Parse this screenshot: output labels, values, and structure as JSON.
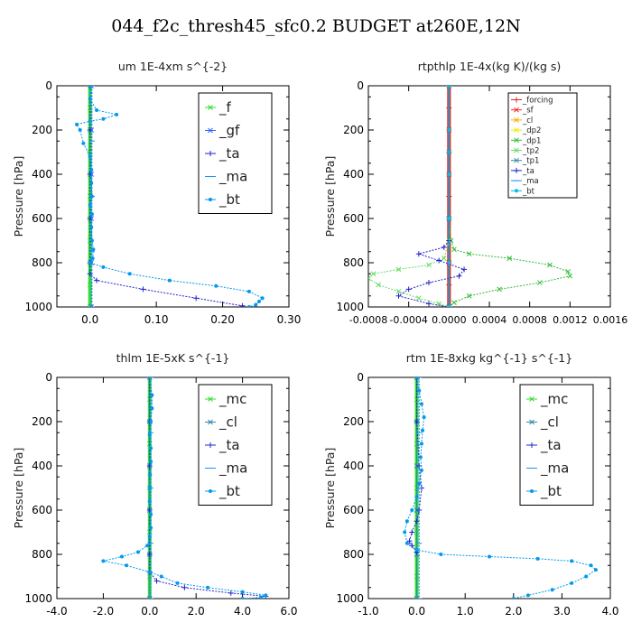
{
  "page": {
    "title": "044_f2c_thresh45_sfc0.2  BUDGET at260E,12N"
  },
  "chart_data": [
    {
      "type": "line",
      "title": "um   1E-4xm s^{-2}",
      "ylabel": "Pressure [hPa]",
      "ylim": [
        1000,
        0
      ],
      "xlim": [
        -0.05,
        0.3
      ],
      "xticks": [
        0.0,
        0.1,
        0.2,
        0.3
      ],
      "xtick_labels": [
        "0.0",
        "0.10",
        "0.20",
        "0.30"
      ],
      "yticks": [
        0,
        200,
        400,
        600,
        800,
        1000
      ],
      "ytick_labels": [
        "0",
        "200",
        "400",
        "600",
        "800",
        "1000"
      ],
      "legend": {
        "position": "top-right",
        "size": "large"
      },
      "series": [
        {
          "name": "_f",
          "color": "#33dd33",
          "marker": "x",
          "x": [
            0,
            0,
            0,
            0,
            0,
            0,
            0,
            0,
            0,
            0,
            0
          ],
          "y": [
            0,
            100,
            200,
            300,
            400,
            500,
            600,
            700,
            800,
            900,
            1000
          ]
        },
        {
          "name": "_gf",
          "color": "#3366ff",
          "marker": "x",
          "x": [
            0.002,
            0.002,
            0.002,
            0.002,
            0.002,
            0.002
          ],
          "y": [
            0,
            200,
            400,
            600,
            800,
            1000
          ]
        },
        {
          "name": "_ta",
          "color": "#2222cc",
          "marker": "+",
          "x": [
            0.0,
            0.0,
            0.0,
            0.0,
            0.0,
            0.0,
            0.01,
            0.08,
            0.16,
            0.23
          ],
          "y": [
            0,
            200,
            400,
            600,
            800,
            850,
            880,
            920,
            960,
            995
          ]
        },
        {
          "name": "_ma",
          "color": "#1e90ff",
          "marker": "-",
          "x": [
            0.003,
            0.003,
            0.003,
            0.003,
            0.003
          ],
          "y": [
            0,
            250,
            500,
            750,
            1000
          ]
        },
        {
          "name": "_bt",
          "color": "#0099ee",
          "marker": "o",
          "x": [
            0.0,
            0.0,
            0.01,
            0.04,
            0.02,
            0.0,
            -0.02,
            -0.015,
            -0.01,
            0.0,
            0.002,
            0.002,
            0.003,
            0.0,
            0.003,
            0.002,
            0.003,
            0.005,
            0.004,
            0.0,
            0.02,
            0.06,
            0.12,
            0.19,
            0.24,
            0.26,
            0.255,
            0.25,
            0.24
          ],
          "y": [
            0,
            60,
            110,
            130,
            150,
            160,
            175,
            200,
            260,
            320,
            380,
            440,
            500,
            540,
            580,
            640,
            700,
            740,
            780,
            800,
            820,
            850,
            880,
            905,
            930,
            960,
            975,
            990,
            1000
          ]
        }
      ]
    },
    {
      "type": "line",
      "title": "rtpthlp   1E-4x(kg K)/(kg s)",
      "ylabel": "Pressure [hPa]",
      "ylim": [
        1000,
        0
      ],
      "xlim": [
        -0.0008,
        0.0016
      ],
      "xticks": [
        -0.0008,
        -0.0004,
        0.0,
        0.0004,
        0.0008,
        0.0012,
        0.0016
      ],
      "xtick_labels": [
        "-0.0008",
        "-0.0004",
        "0.0000",
        "0.0004",
        "0.0008",
        "0.0012",
        "0.0016"
      ],
      "yticks": [
        0,
        200,
        400,
        600,
        800,
        1000
      ],
      "ytick_labels": [
        "0",
        "200",
        "400",
        "600",
        "800",
        "1000"
      ],
      "legend": {
        "position": "top-right",
        "size": "small"
      },
      "series": [
        {
          "name": "_forcing",
          "color": "#dd2222",
          "marker": "+",
          "x": [
            0,
            0,
            0,
            0,
            0,
            0,
            0,
            0,
            0,
            0,
            0
          ],
          "y": [
            0,
            100,
            200,
            300,
            400,
            500,
            600,
            700,
            800,
            900,
            1000
          ]
        },
        {
          "name": "_sf",
          "color": "#ff2222",
          "marker": "x",
          "x": [
            0,
            0,
            0,
            0,
            0,
            0
          ],
          "y": [
            0,
            200,
            400,
            600,
            800,
            1000
          ]
        },
        {
          "name": "_cl",
          "color": "#ffaa00",
          "marker": "x",
          "x": [
            0,
            0,
            0,
            0
          ],
          "y": [
            0,
            300,
            600,
            1000
          ]
        },
        {
          "name": "_dp2",
          "color": "#eeee00",
          "marker": "x",
          "x": [
            0,
            0,
            0,
            0
          ],
          "y": [
            0,
            300,
            600,
            1000
          ]
        },
        {
          "name": "_dp1",
          "color": "#33bb33",
          "marker": "x",
          "x": [
            0.0,
            0.0,
            2e-05,
            5e-05,
            0.0002,
            0.0006,
            0.001,
            0.00118,
            0.0012,
            0.0009,
            0.0005,
            0.0002,
            5e-05,
            0.0
          ],
          "y": [
            0,
            600,
            700,
            740,
            760,
            780,
            810,
            840,
            860,
            890,
            920,
            950,
            980,
            1000
          ]
        },
        {
          "name": "_tp2",
          "color": "#66dd66",
          "marker": "x",
          "x": [
            0.0,
            0.0,
            -5e-05,
            -0.0002,
            -0.0005,
            -0.00075,
            -0.0008,
            -0.0007,
            -0.0005,
            -0.0003,
            -0.0001,
            0.0
          ],
          "y": [
            0,
            700,
            780,
            810,
            830,
            850,
            870,
            900,
            930,
            960,
            985,
            1000
          ]
        },
        {
          "name": "_tp1",
          "color": "#3388aa",
          "marker": "x",
          "x": [
            0,
            0,
            0,
            0
          ],
          "y": [
            0,
            300,
            600,
            1000
          ]
        },
        {
          "name": "_ta",
          "color": "#2222cc",
          "marker": "+",
          "x": [
            0.0,
            -5e-05,
            -0.0003,
            -0.0001,
            0.00015,
            0.0001,
            -0.0002,
            -0.0004,
            -0.0005,
            -0.0002,
            0.0
          ],
          "y": [
            700,
            730,
            760,
            790,
            830,
            860,
            890,
            920,
            950,
            985,
            1000
          ]
        },
        {
          "name": "_ma",
          "color": "#1e90ff",
          "marker": "-",
          "x": [
            0,
            0,
            0,
            0
          ],
          "y": [
            0,
            300,
            600,
            1000
          ]
        },
        {
          "name": "_bt",
          "color": "#00bbee",
          "marker": "o",
          "x": [
            0,
            0,
            0,
            0,
            0,
            0
          ],
          "y": [
            0,
            200,
            400,
            600,
            800,
            1000
          ]
        }
      ]
    },
    {
      "type": "line",
      "title": "thlm   1E-5xK s^{-1}",
      "ylabel": "Pressure [hPa]",
      "ylim": [
        1000,
        0
      ],
      "xlim": [
        -4.0,
        6.0
      ],
      "xticks": [
        -4.0,
        -2.0,
        0.0,
        2.0,
        4.0,
        6.0
      ],
      "xtick_labels": [
        "-4.0",
        "-2.0",
        "0.0",
        "2.0",
        "4.0",
        "6.0"
      ],
      "yticks": [
        0,
        200,
        400,
        600,
        800,
        1000
      ],
      "ytick_labels": [
        "0",
        "200",
        "400",
        "600",
        "800",
        "1000"
      ],
      "legend": {
        "position": "top-right",
        "size": "large"
      },
      "series": [
        {
          "name": "_mc",
          "color": "#33dd33",
          "marker": "x",
          "x": [
            0,
            0,
            0,
            0,
            0,
            0,
            0,
            0,
            0,
            0,
            0
          ],
          "y": [
            0,
            100,
            200,
            300,
            400,
            500,
            600,
            700,
            800,
            900,
            1000
          ]
        },
        {
          "name": "_cl",
          "color": "#3388aa",
          "marker": "x",
          "x": [
            0,
            0,
            0,
            0,
            0,
            0
          ],
          "y": [
            0,
            200,
            400,
            600,
            800,
            1000
          ]
        },
        {
          "name": "_ta",
          "color": "#2222cc",
          "marker": "+",
          "x": [
            0,
            0,
            0,
            0,
            0,
            0,
            0.3,
            1.5,
            3.5,
            5.0
          ],
          "y": [
            0,
            200,
            400,
            600,
            800,
            880,
            920,
            950,
            975,
            990
          ]
        },
        {
          "name": "_ma",
          "color": "#1e90ff",
          "marker": "-",
          "x": [
            0.05,
            0.05,
            0.05,
            0.05,
            0.05
          ],
          "y": [
            0,
            250,
            500,
            750,
            1000
          ]
        },
        {
          "name": "_bt",
          "color": "#0099ee",
          "marker": "o",
          "x": [
            0.0,
            0.1,
            0.1,
            0.05,
            0.0,
            0.05,
            0.05,
            0.02,
            0.0,
            0.0,
            0.05,
            0.05,
            0.0,
            -0.1,
            -0.5,
            -1.2,
            -2.0,
            -1.0,
            0.0,
            0.5,
            1.2,
            2.5,
            4.0,
            5.0,
            4.8,
            4.0
          ],
          "y": [
            0,
            80,
            140,
            200,
            260,
            320,
            380,
            440,
            500,
            560,
            620,
            680,
            720,
            760,
            790,
            810,
            830,
            850,
            880,
            900,
            930,
            950,
            970,
            985,
            995,
            1000
          ]
        }
      ]
    },
    {
      "type": "line",
      "title": "rtm   1E-8xkg kg^{-1} s^{-1}",
      "ylabel": "Pressure [hPa]",
      "ylim": [
        1000,
        0
      ],
      "xlim": [
        -1.0,
        4.0
      ],
      "xticks": [
        -1.0,
        0.0,
        1.0,
        2.0,
        3.0,
        4.0
      ],
      "xtick_labels": [
        "-1.0",
        "0.0",
        "1.0",
        "2.0",
        "3.0",
        "4.0"
      ],
      "yticks": [
        0,
        200,
        400,
        600,
        800,
        1000
      ],
      "ytick_labels": [
        "0",
        "200",
        "400",
        "600",
        "800",
        "1000"
      ],
      "legend": {
        "position": "top-right",
        "size": "large"
      },
      "series": [
        {
          "name": "_mc",
          "color": "#33dd33",
          "marker": "x",
          "x": [
            0,
            0,
            0,
            0,
            0,
            0,
            0,
            0,
            0,
            0,
            0
          ],
          "y": [
            0,
            100,
            200,
            300,
            400,
            500,
            600,
            700,
            800,
            900,
            1000
          ]
        },
        {
          "name": "_cl",
          "color": "#3388aa",
          "marker": "x",
          "x": [
            0,
            0,
            0,
            0,
            0,
            0
          ],
          "y": [
            0,
            200,
            400,
            600,
            800,
            1000
          ]
        },
        {
          "name": "_ta",
          "color": "#2222cc",
          "marker": "+",
          "x": [
            0.0,
            0.0,
            0.05,
            0.1,
            0.05,
            0.0,
            -0.1,
            -0.15,
            -0.1,
            0.0
          ],
          "y": [
            0,
            200,
            400,
            500,
            600,
            650,
            700,
            740,
            760,
            790
          ]
        },
        {
          "name": "_ma",
          "color": "#1e90ff",
          "marker": "-",
          "x": [
            0.05,
            0.05,
            0.05,
            0.05,
            0.05
          ],
          "y": [
            0,
            250,
            500,
            750,
            1000
          ]
        },
        {
          "name": "_bt",
          "color": "#0099ee",
          "marker": "o",
          "x": [
            0.0,
            0.05,
            0.1,
            0.15,
            0.12,
            0.1,
            0.08,
            0.1,
            0.05,
            0.0,
            -0.1,
            -0.2,
            -0.25,
            -0.2,
            0.0,
            0.5,
            1.5,
            2.5,
            3.2,
            3.6,
            3.7,
            3.5,
            3.2,
            2.8,
            2.3,
            2.0
          ],
          "y": [
            0,
            60,
            120,
            180,
            240,
            300,
            360,
            420,
            480,
            540,
            600,
            650,
            700,
            750,
            780,
            800,
            810,
            820,
            830,
            850,
            870,
            900,
            930,
            960,
            985,
            1000
          ]
        }
      ]
    }
  ]
}
